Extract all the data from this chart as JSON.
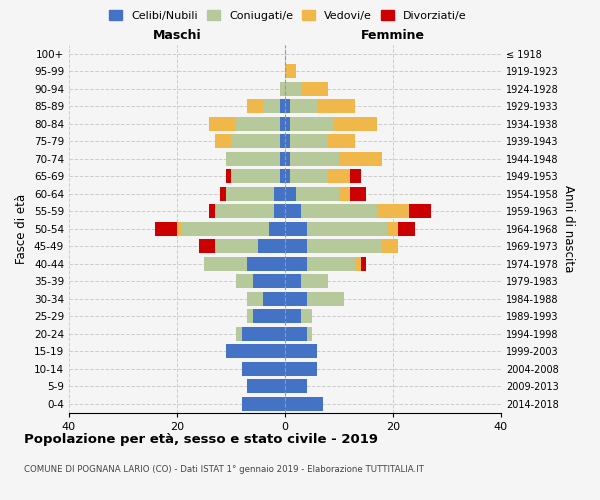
{
  "age_groups": [
    "0-4",
    "5-9",
    "10-14",
    "15-19",
    "20-24",
    "25-29",
    "30-34",
    "35-39",
    "40-44",
    "45-49",
    "50-54",
    "55-59",
    "60-64",
    "65-69",
    "70-74",
    "75-79",
    "80-84",
    "85-89",
    "90-94",
    "95-99",
    "100+"
  ],
  "birth_years": [
    "2014-2018",
    "2009-2013",
    "2004-2008",
    "1999-2003",
    "1994-1998",
    "1989-1993",
    "1984-1988",
    "1979-1983",
    "1974-1978",
    "1969-1973",
    "1964-1968",
    "1959-1963",
    "1954-1958",
    "1949-1953",
    "1944-1948",
    "1939-1943",
    "1934-1938",
    "1929-1933",
    "1924-1928",
    "1919-1923",
    "≤ 1918"
  ],
  "maschi_celibi": [
    8,
    7,
    8,
    11,
    8,
    6,
    4,
    6,
    7,
    5,
    3,
    2,
    2,
    1,
    1,
    1,
    1,
    1,
    0,
    0,
    0
  ],
  "maschi_coniugati": [
    0,
    0,
    0,
    0,
    1,
    1,
    3,
    3,
    8,
    8,
    16,
    11,
    9,
    9,
    10,
    9,
    8,
    3,
    1,
    0,
    0
  ],
  "maschi_vedovi": [
    0,
    0,
    0,
    0,
    0,
    0,
    0,
    0,
    0,
    0,
    1,
    0,
    0,
    0,
    0,
    3,
    5,
    3,
    0,
    0,
    0
  ],
  "maschi_divorziati": [
    0,
    0,
    0,
    0,
    0,
    0,
    0,
    0,
    0,
    3,
    4,
    1,
    1,
    1,
    0,
    0,
    0,
    0,
    0,
    0,
    0
  ],
  "femmine_celibi": [
    7,
    4,
    6,
    6,
    4,
    3,
    4,
    3,
    4,
    4,
    4,
    3,
    2,
    1,
    1,
    1,
    1,
    1,
    0,
    0,
    0
  ],
  "femmine_coniugati": [
    0,
    0,
    0,
    0,
    1,
    2,
    7,
    5,
    9,
    14,
    15,
    14,
    8,
    7,
    9,
    7,
    8,
    5,
    3,
    0,
    0
  ],
  "femmine_vedovi": [
    0,
    0,
    0,
    0,
    0,
    0,
    0,
    0,
    1,
    3,
    2,
    6,
    2,
    4,
    8,
    5,
    8,
    7,
    5,
    2,
    0
  ],
  "femmine_divorziati": [
    0,
    0,
    0,
    0,
    0,
    0,
    0,
    0,
    1,
    0,
    3,
    4,
    3,
    2,
    0,
    0,
    0,
    0,
    0,
    0,
    0
  ],
  "color_celibi": "#4472c4",
  "color_coniugati": "#b5c99a",
  "color_vedovi": "#f0b74a",
  "color_divorziati": "#cc0000",
  "title": "Popolazione per età, sesso e stato civile - 2019",
  "subtitle": "COMUNE DI POGNANA LARIO (CO) - Dati ISTAT 1° gennaio 2019 - Elaborazione TUTTITALIA.IT",
  "ylabel": "Fasce di età",
  "ylabel_right": "Anni di nascita",
  "xlabel_maschi": "Maschi",
  "xlabel_femmine": "Femmine",
  "xlim": 40,
  "background_color": "#f5f5f5"
}
